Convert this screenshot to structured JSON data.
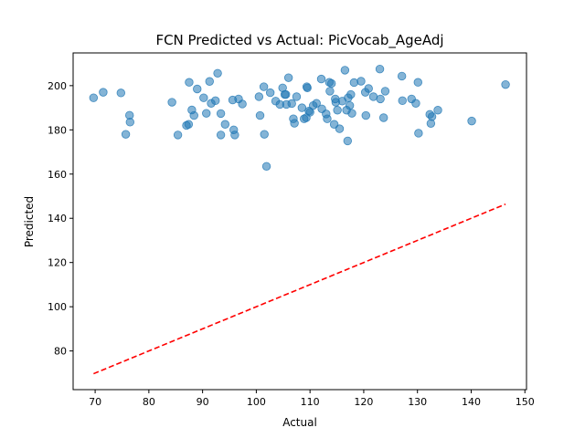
{
  "chart_data": {
    "type": "scatter",
    "title": "FCN Predicted vs Actual: PicVocab_AgeAdj",
    "xlabel": "Actual",
    "ylabel": "Predicted",
    "xlim": [
      65.9,
      150.3
    ],
    "ylim": [
      62.5,
      214.8
    ],
    "xticks": [
      70,
      80,
      90,
      100,
      110,
      120,
      130,
      140,
      150
    ],
    "yticks": [
      80,
      100,
      120,
      140,
      160,
      180,
      200
    ],
    "grid": false,
    "legend": "none",
    "series": [
      {
        "color": "#1f77b4",
        "marker_alpha": 0.55,
        "points": [
          [
            69.7,
            194.5
          ],
          [
            71.5,
            197.0
          ],
          [
            74.8,
            196.7
          ],
          [
            75.7,
            178.0
          ],
          [
            76.4,
            186.6
          ],
          [
            76.5,
            183.5
          ],
          [
            84.3,
            192.5
          ],
          [
            85.4,
            177.7
          ],
          [
            87.0,
            182.0
          ],
          [
            87.4,
            182.5
          ],
          [
            87.5,
            201.5
          ],
          [
            88.0,
            189.0
          ],
          [
            88.4,
            186.5
          ],
          [
            89.0,
            198.5
          ],
          [
            90.2,
            194.5
          ],
          [
            90.7,
            187.5
          ],
          [
            91.3,
            201.9
          ],
          [
            91.6,
            192.0
          ],
          [
            92.4,
            193.2
          ],
          [
            92.8,
            205.6
          ],
          [
            93.4,
            187.4
          ],
          [
            93.4,
            177.7
          ],
          [
            94.2,
            182.5
          ],
          [
            95.6,
            193.5
          ],
          [
            95.8,
            180.0
          ],
          [
            96.0,
            177.7
          ],
          [
            96.7,
            194.0
          ],
          [
            97.4,
            191.7
          ],
          [
            100.5,
            195.0
          ],
          [
            100.7,
            186.5
          ],
          [
            101.4,
            199.5
          ],
          [
            101.5,
            178.0
          ],
          [
            101.9,
            163.5
          ],
          [
            102.6,
            196.8
          ],
          [
            103.6,
            193.0
          ],
          [
            104.4,
            191.5
          ],
          [
            104.9,
            199.0
          ],
          [
            105.3,
            196.0
          ],
          [
            105.5,
            196.0
          ],
          [
            105.6,
            191.5
          ],
          [
            106.0,
            203.6
          ],
          [
            106.6,
            191.9
          ],
          [
            106.9,
            185.0
          ],
          [
            107.1,
            183.0
          ],
          [
            107.5,
            195.0
          ],
          [
            108.5,
            190.0
          ],
          [
            108.9,
            185.0
          ],
          [
            109.3,
            185.5
          ],
          [
            109.4,
            199.5
          ],
          [
            109.5,
            199.0
          ],
          [
            109.8,
            188.5
          ],
          [
            110.0,
            188.0
          ],
          [
            110.6,
            191.0
          ],
          [
            111.2,
            192.0
          ],
          [
            112.1,
            203.0
          ],
          [
            112.2,
            189.5
          ],
          [
            113.0,
            187.2
          ],
          [
            113.2,
            185.0
          ],
          [
            113.6,
            201.5
          ],
          [
            113.7,
            197.5
          ],
          [
            114.0,
            201.0
          ],
          [
            114.5,
            182.5
          ],
          [
            114.7,
            194.0
          ],
          [
            114.8,
            192.5
          ],
          [
            115.1,
            188.9
          ],
          [
            115.5,
            180.5
          ],
          [
            116.0,
            193.0
          ],
          [
            116.5,
            207.0
          ],
          [
            116.8,
            188.9
          ],
          [
            117.0,
            175.0
          ],
          [
            117.1,
            194.5
          ],
          [
            117.4,
            191.0
          ],
          [
            117.6,
            196.0
          ],
          [
            117.8,
            187.5
          ],
          [
            118.2,
            201.4
          ],
          [
            119.5,
            202.0
          ],
          [
            120.3,
            197.0
          ],
          [
            120.4,
            186.5
          ],
          [
            120.9,
            198.7
          ],
          [
            121.8,
            195.0
          ],
          [
            123.0,
            207.5
          ],
          [
            123.1,
            194.0
          ],
          [
            123.7,
            185.5
          ],
          [
            124.0,
            197.5
          ],
          [
            127.1,
            204.3
          ],
          [
            127.2,
            193.2
          ],
          [
            128.9,
            194.0
          ],
          [
            129.7,
            192.0
          ],
          [
            130.1,
            201.5
          ],
          [
            130.2,
            178.5
          ],
          [
            132.3,
            187.0
          ],
          [
            132.5,
            182.9
          ],
          [
            132.7,
            186.0
          ],
          [
            133.8,
            188.9
          ],
          [
            140.1,
            184.0
          ],
          [
            146.4,
            200.5
          ]
        ]
      }
    ],
    "reference_line": {
      "style": "dashed",
      "color": "#ff0000",
      "from": [
        69.7,
        69.7
      ],
      "to": [
        146.4,
        146.4
      ]
    }
  }
}
